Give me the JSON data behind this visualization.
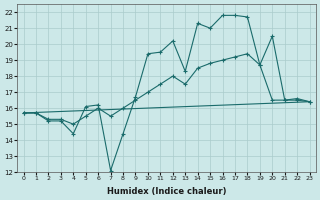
{
  "xlabel": "Humidex (Indice chaleur)",
  "ylabel": "",
  "xlim": [
    -0.5,
    23.5
  ],
  "ylim": [
    12,
    22.5
  ],
  "xticks": [
    0,
    1,
    2,
    3,
    4,
    5,
    6,
    7,
    8,
    9,
    10,
    11,
    12,
    13,
    14,
    15,
    16,
    17,
    18,
    19,
    20,
    21,
    22,
    23
  ],
  "yticks": [
    12,
    13,
    14,
    15,
    16,
    17,
    18,
    19,
    20,
    21,
    22
  ],
  "bg_color": "#cce8e8",
  "grid_color": "#aacccc",
  "line_color": "#1a6b6b",
  "line1_x": [
    0,
    1,
    2,
    3,
    4,
    5,
    6,
    7,
    8,
    9,
    10,
    11,
    12,
    13,
    14,
    15,
    16,
    17,
    18,
    19,
    20,
    21,
    22,
    23
  ],
  "line1_y": [
    15.7,
    15.7,
    15.2,
    15.2,
    14.4,
    16.1,
    16.2,
    12.1,
    14.4,
    16.7,
    19.4,
    19.5,
    20.2,
    18.3,
    21.3,
    21.0,
    21.8,
    21.8,
    21.7,
    18.7,
    20.5,
    16.5,
    16.6,
    16.4
  ],
  "line2_x": [
    0,
    1,
    2,
    3,
    4,
    5,
    6,
    7,
    8,
    9,
    10,
    11,
    12,
    13,
    14,
    15,
    16,
    17,
    18,
    19,
    20,
    21,
    22,
    23
  ],
  "line2_y": [
    15.7,
    15.7,
    15.3,
    15.3,
    15.0,
    15.5,
    16.0,
    15.5,
    16.0,
    16.5,
    17.0,
    17.5,
    18.0,
    17.5,
    18.5,
    18.8,
    19.0,
    19.2,
    19.4,
    18.7,
    16.5,
    16.5,
    16.5,
    16.4
  ],
  "line3_x": [
    0,
    23
  ],
  "line3_y": [
    15.7,
    16.4
  ]
}
